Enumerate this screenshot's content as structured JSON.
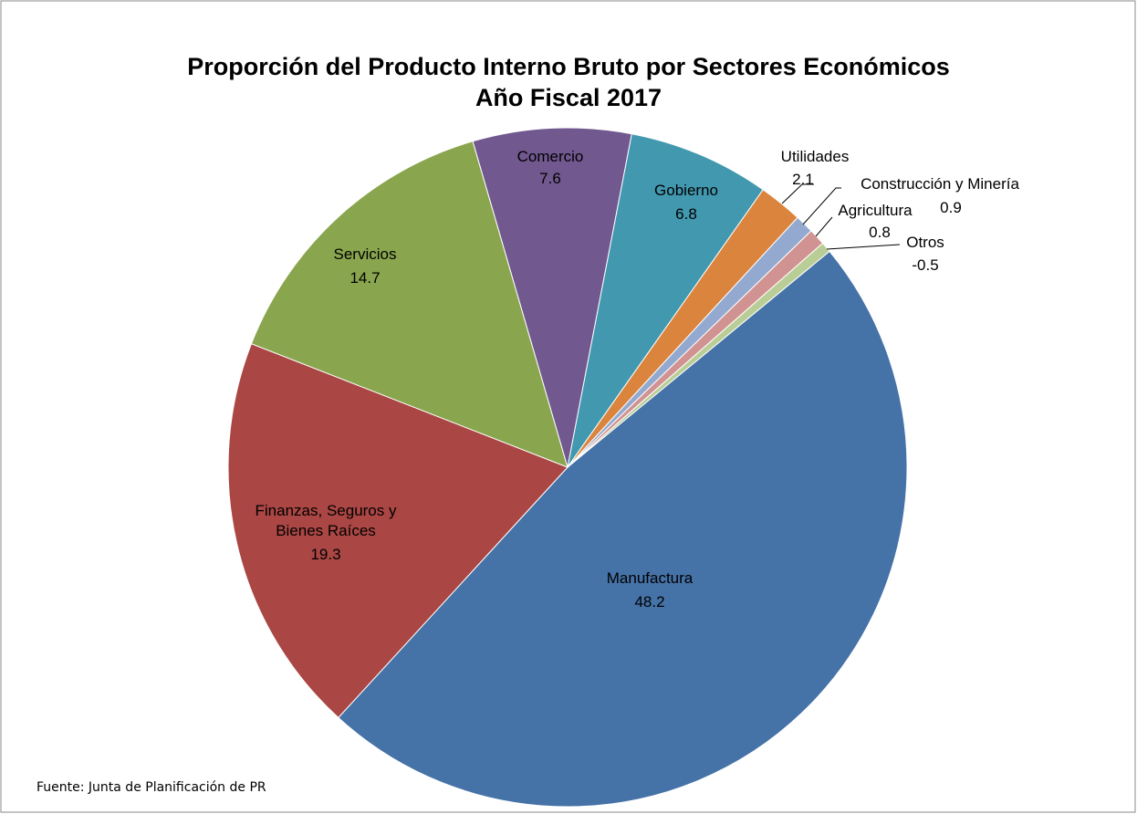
{
  "chart_data": {
    "type": "pie",
    "title": "Proporción del Producto Interno Bruto por Sectores Económicos",
    "subtitle": "Año Fiscal 2017",
    "categories": [
      "Manufactura",
      "Finanzas, Seguros y Bienes Raíces",
      "Servicios",
      "Comercio",
      "Gobierno",
      "Utilidades",
      "Construcción y Minería",
      "Agricultura",
      "Otros"
    ],
    "values": [
      48.2,
      19.3,
      14.7,
      7.6,
      6.8,
      2.1,
      0.9,
      0.8,
      -0.5
    ],
    "colors": [
      "#4572A7",
      "#AA4643",
      "#89A54E",
      "#71588F",
      "#4198AF",
      "#DB843D",
      "#93A9CF",
      "#D19392",
      "#B9CD96"
    ],
    "note": "Fuente: Junta de Planificación de PR"
  }
}
